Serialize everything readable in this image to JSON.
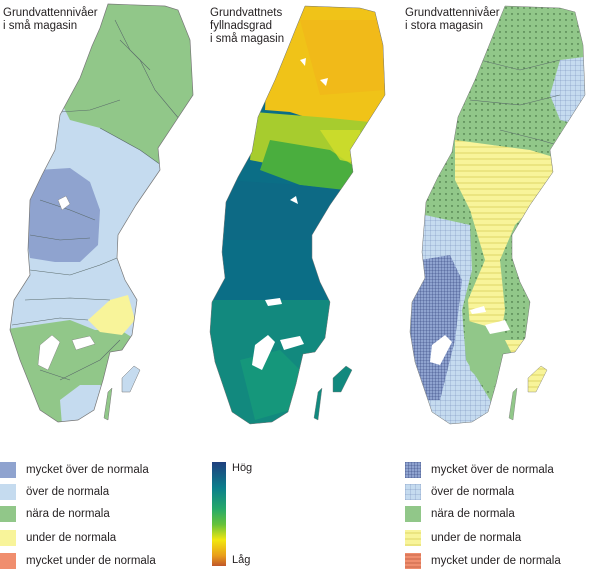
{
  "panels": [
    {
      "title": "Grundvattennivåer\ni små magasin"
    },
    {
      "title": "Grundvattnets\nfyllnadsgrad\ni små magasin"
    },
    {
      "title": "Grundvattennivåer\ni stora magasin"
    }
  ],
  "legend_levels": [
    {
      "label": "mycket över de normala",
      "color": "#8fa3cf"
    },
    {
      "label": "över de normala",
      "color": "#c5dbef"
    },
    {
      "label": "nära de normala",
      "color": "#91c789"
    },
    {
      "label": "under de normala",
      "color": "#f8f49a"
    },
    {
      "label": "mycket under de normala",
      "color": "#f08e6e"
    }
  ],
  "fill_gradient": {
    "high_label": "Hög",
    "low_label": "Låg",
    "colors": [
      "#1f3f7e",
      "#0b7f8c",
      "#26a96a",
      "#66c23a",
      "#f2e70f",
      "#e99e1a",
      "#c0562a"
    ]
  }
}
